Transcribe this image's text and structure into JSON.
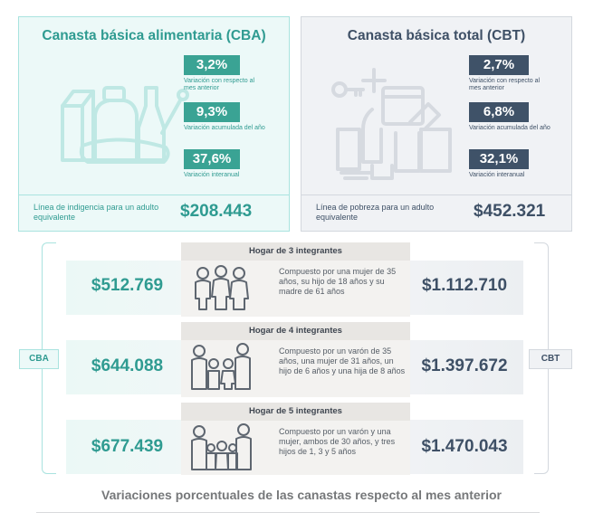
{
  "cba": {
    "title": "Canasta básica alimentaria (CBA)",
    "stats": [
      {
        "value": "3,2%",
        "label": "Variación con respecto al mes anterior"
      },
      {
        "value": "9,3%",
        "label": "Variación acumulada del año"
      },
      {
        "value": "37,6%",
        "label": "Variación interanual"
      }
    ],
    "line_label": "Línea de indigencia para un adulto equivalente",
    "line_value": "$208.443",
    "tag": "CBA",
    "illustration_icon": "groceries-icon"
  },
  "cbt": {
    "title": "Canasta básica total (CBT)",
    "stats": [
      {
        "value": "2,7%",
        "label": "Variación con respecto al mes anterior"
      },
      {
        "value": "6,8%",
        "label": "Variación acumulada del año"
      },
      {
        "value": "32,1%",
        "label": "Variación interanual"
      }
    ],
    "line_label": "Línea de pobreza para un adulto equivalente",
    "line_value": "$452.321",
    "tag": "CBT",
    "illustration_icon": "household-goods-icon"
  },
  "households": [
    {
      "title": "Hogar de 3 integrantes",
      "description": "Compuesto por una mujer de 35 años, su hijo de 18 años y su madre de 61 años",
      "cba": "$512.769",
      "cbt": "$1.112.710"
    },
    {
      "title": "Hogar de 4 integrantes",
      "description": "Compuesto por un varón de 35 años, una mujer de 31 años, un hijo de 6 años y una hija de 8 años",
      "cba": "$644.088",
      "cbt": "$1.397.672"
    },
    {
      "title": "Hogar de 5 integrantes",
      "description": "Compuesto por un varón y una mujer, ambos de 30 años, y tres hijos de 1, 3 y 5 años",
      "cba": "$677.439",
      "cbt": "$1.470.043"
    }
  ],
  "footer_title": "Variaciones porcentuales de las canastas respecto al mes anterior",
  "colors": {
    "teal": "#3aa394",
    "teal_text": "#2f9b91",
    "slate": "#3f5268",
    "teal_bg": "#ecf9f8",
    "grey_bg": "#f0f2f5"
  }
}
